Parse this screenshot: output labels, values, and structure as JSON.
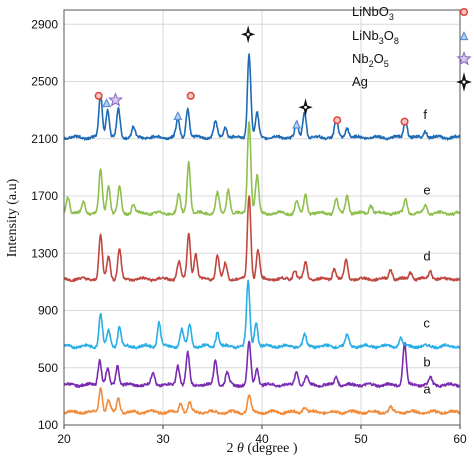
{
  "chart_data": {
    "type": "line",
    "xlabel_prefix": "2",
    "xlabel_symbol": "θ",
    "xlabel_suffix": "(degree )",
    "ylabel": "Intensity (a.u)",
    "xlim": [
      20,
      60
    ],
    "ylim": [
      100,
      3000
    ],
    "x_ticks": [
      "20",
      "30",
      "40",
      "50",
      "60"
    ],
    "y_ticks": [
      "100",
      "500",
      "900",
      "1300",
      "1700",
      "2100",
      "2500",
      "2900"
    ],
    "legend": [
      {
        "name": "LiNbO3",
        "base": "LiNbO",
        "sub": "3",
        "marker": "circle-marker",
        "color": "#e0443e"
      },
      {
        "name": "LiNb3O8",
        "base": "LiNb",
        "sub": "3",
        "base2": "O",
        "sub2": "8",
        "marker": "triangle-marker",
        "color": "#5a8fd6"
      },
      {
        "name": "Nb2O5",
        "base": "Nb",
        "sub": "2",
        "base2": "O",
        "sub2": "5",
        "marker": "star-marker",
        "color": "#8a6cc2"
      },
      {
        "name": "Ag",
        "marker": "sparkle-marker",
        "color": "#111111"
      }
    ],
    "series": [
      {
        "name": "a",
        "color": "#f08c3c",
        "baseline": 190,
        "peaks": [
          [
            23.7,
            170
          ],
          [
            24.5,
            80
          ],
          [
            25.5,
            100
          ],
          [
            31.8,
            70
          ],
          [
            32.7,
            60
          ],
          [
            38.7,
            120
          ],
          [
            44.3,
            40
          ],
          [
            53.0,
            30
          ]
        ]
      },
      {
        "name": "b",
        "color": "#7a2bb0",
        "baseline": 380,
        "peaks": [
          [
            23.6,
            180
          ],
          [
            24.4,
            110
          ],
          [
            25.4,
            140
          ],
          [
            29.0,
            90
          ],
          [
            31.5,
            140
          ],
          [
            32.5,
            220
          ],
          [
            35.3,
            180
          ],
          [
            36.5,
            90
          ],
          [
            38.7,
            300
          ],
          [
            39.5,
            120
          ],
          [
            43.5,
            100
          ],
          [
            44.5,
            60
          ],
          [
            47.5,
            60
          ],
          [
            54.4,
            300
          ],
          [
            57.0,
            50
          ]
        ]
      },
      {
        "name": "c",
        "color": "#29aee6",
        "baseline": 650,
        "peaks": [
          [
            23.7,
            230
          ],
          [
            24.5,
            110
          ],
          [
            25.6,
            140
          ],
          [
            29.6,
            170
          ],
          [
            31.9,
            120
          ],
          [
            32.7,
            150
          ],
          [
            35.5,
            100
          ],
          [
            38.6,
            450
          ],
          [
            39.4,
            170
          ],
          [
            44.3,
            80
          ],
          [
            48.6,
            80
          ],
          [
            54.0,
            60
          ]
        ]
      },
      {
        "name": "d",
        "color": "#c0473f",
        "baseline": 1120,
        "peaks": [
          [
            23.7,
            300
          ],
          [
            24.5,
            170
          ],
          [
            25.6,
            210
          ],
          [
            31.6,
            120
          ],
          [
            32.6,
            320
          ],
          [
            33.3,
            180
          ],
          [
            35.5,
            170
          ],
          [
            36.3,
            110
          ],
          [
            38.7,
            590
          ],
          [
            39.6,
            200
          ],
          [
            43.3,
            70
          ],
          [
            44.4,
            110
          ],
          [
            47.3,
            80
          ],
          [
            48.5,
            130
          ],
          [
            53.0,
            70
          ],
          [
            55.0,
            50
          ],
          [
            57.0,
            60
          ]
        ]
      },
      {
        "name": "e",
        "color": "#8fbf4d",
        "baseline": 1580,
        "peaks": [
          [
            20.4,
            120
          ],
          [
            22.0,
            80
          ],
          [
            23.7,
            300
          ],
          [
            24.5,
            200
          ],
          [
            25.6,
            180
          ],
          [
            27.0,
            60
          ],
          [
            31.6,
            130
          ],
          [
            32.6,
            360
          ],
          [
            35.5,
            140
          ],
          [
            36.6,
            170
          ],
          [
            38.7,
            650
          ],
          [
            39.5,
            260
          ],
          [
            43.5,
            90
          ],
          [
            44.4,
            130
          ],
          [
            47.5,
            100
          ],
          [
            48.6,
            130
          ],
          [
            51.0,
            60
          ],
          [
            54.5,
            100
          ],
          [
            56.5,
            60
          ]
        ]
      },
      {
        "name": "f",
        "color": "#1f6ab5",
        "baseline": 2110,
        "peaks": [
          [
            23.7,
            300
          ],
          [
            24.4,
            200
          ],
          [
            25.5,
            200
          ],
          [
            27.0,
            70
          ],
          [
            31.5,
            130
          ],
          [
            32.5,
            210
          ],
          [
            35.3,
            110
          ],
          [
            36.3,
            80
          ],
          [
            38.7,
            580
          ],
          [
            39.5,
            170
          ],
          [
            43.5,
            100
          ],
          [
            44.3,
            180
          ],
          [
            47.5,
            130
          ],
          [
            48.6,
            70
          ],
          [
            54.5,
            130
          ],
          [
            56.5,
            50
          ]
        ]
      }
    ],
    "phase_markers": [
      {
        "marker": "circle-marker",
        "x": 23.5,
        "y": 2400
      },
      {
        "marker": "triangle-marker",
        "x": 24.3,
        "y": 2350
      },
      {
        "marker": "star-marker",
        "x": 25.2,
        "y": 2370
      },
      {
        "marker": "triangle-marker",
        "x": 31.5,
        "y": 2260
      },
      {
        "marker": "circle-marker",
        "x": 32.8,
        "y": 2400
      },
      {
        "marker": "sparkle-marker",
        "x": 38.6,
        "y": 2830
      },
      {
        "marker": "triangle-marker",
        "x": 43.5,
        "y": 2200
      },
      {
        "marker": "sparkle-marker",
        "x": 44.4,
        "y": 2320
      },
      {
        "marker": "circle-marker",
        "x": 47.6,
        "y": 2230
      },
      {
        "marker": "circle-marker",
        "x": 54.4,
        "y": 2220
      }
    ]
  }
}
